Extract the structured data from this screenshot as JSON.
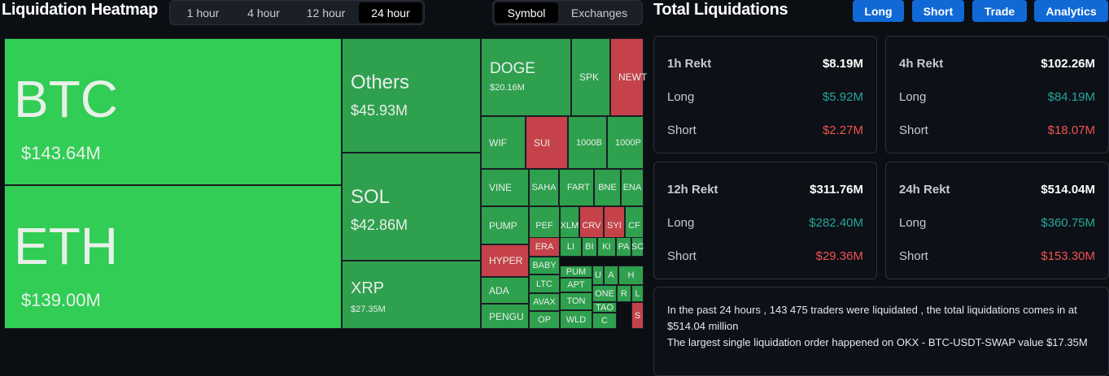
{
  "heatmap": {
    "title": "Liquidation Heatmap",
    "time_filters": [
      "1 hour",
      "4 hour",
      "12 hour",
      "24 hour"
    ],
    "active_time_filter": "24 hour",
    "view_toggle": [
      "Symbol",
      "Exchanges"
    ],
    "active_view": "Symbol",
    "tiles": [
      {
        "name": "BTC",
        "value": "$143.64M",
        "color": "#31cd55"
      },
      {
        "name": "ETH",
        "value": "$139.00M",
        "color": "#31cd55"
      },
      {
        "name": "Others",
        "value": "$45.93M",
        "color": "#2ea04e"
      },
      {
        "name": "SOL",
        "value": "$42.86M",
        "color": "#2ea04e"
      },
      {
        "name": "XRP",
        "value": "$27.35M",
        "color": "#2ea04e"
      },
      {
        "name": "DOGE",
        "value": "$20.16M",
        "color": "#2ea04e"
      },
      {
        "name": "SPK"
      },
      {
        "name": "NEWT"
      },
      {
        "name": "WIF"
      },
      {
        "name": "SUI"
      },
      {
        "name": "1000B"
      },
      {
        "name": "1000P"
      },
      {
        "name": "VINE"
      },
      {
        "name": "SAHA"
      },
      {
        "name": "FART"
      },
      {
        "name": "BNE"
      },
      {
        "name": "ENA"
      },
      {
        "name": "PUMP"
      },
      {
        "name": "PEF"
      },
      {
        "name": "XLM"
      },
      {
        "name": "CRV"
      },
      {
        "name": "SYI"
      },
      {
        "name": "CF"
      },
      {
        "name": "HYPER"
      },
      {
        "name": "ERA"
      },
      {
        "name": "LI"
      },
      {
        "name": "BI"
      },
      {
        "name": "KI"
      },
      {
        "name": "PA"
      },
      {
        "name": "SC"
      },
      {
        "name": "BABY"
      },
      {
        "name": "PUM"
      },
      {
        "name": "U"
      },
      {
        "name": "A"
      },
      {
        "name": "H"
      },
      {
        "name": "ADA"
      },
      {
        "name": "LTC"
      },
      {
        "name": "APT"
      },
      {
        "name": "ONE"
      },
      {
        "name": "R"
      },
      {
        "name": "L"
      },
      {
        "name": "AVAX"
      },
      {
        "name": "TON"
      },
      {
        "name": "TAO"
      },
      {
        "name": "PENGU"
      },
      {
        "name": "OP"
      },
      {
        "name": "WLD"
      },
      {
        "name": "C"
      },
      {
        "name": "S"
      }
    ]
  },
  "totals": {
    "title": "Total Liquidations",
    "buttons": [
      "Long",
      "Short",
      "Trade",
      "Analytics"
    ],
    "cards": [
      {
        "label": "1h Rekt",
        "total": "$8.19M",
        "long_label": "Long",
        "long": "$5.92M",
        "short_label": "Short",
        "short": "$2.27M"
      },
      {
        "label": "4h Rekt",
        "total": "$102.26M",
        "long_label": "Long",
        "long": "$84.19M",
        "short_label": "Short",
        "short": "$18.07M"
      },
      {
        "label": "12h Rekt",
        "total": "$311.76M",
        "long_label": "Long",
        "long": "$282.40M",
        "short_label": "Short",
        "short": "$29.36M"
      },
      {
        "label": "24h Rekt",
        "total": "$514.04M",
        "long_label": "Long",
        "long": "$360.75M",
        "short_label": "Short",
        "short": "$153.30M"
      }
    ],
    "summary_line1": "In the past 24 hours , 143 475 traders were liquidated , the total liquidations comes in at $514.04 million",
    "summary_line2": "The largest single liquidation order happened on OKX - BTC-USDT-SWAP value $17.35M"
  },
  "colors": {
    "long": "#26a69a",
    "short": "#ef5350",
    "accent": "#1169d6",
    "tile_green": "#2ea04e",
    "tile_bright_green": "#31cd55",
    "tile_red": "#c6424a"
  }
}
